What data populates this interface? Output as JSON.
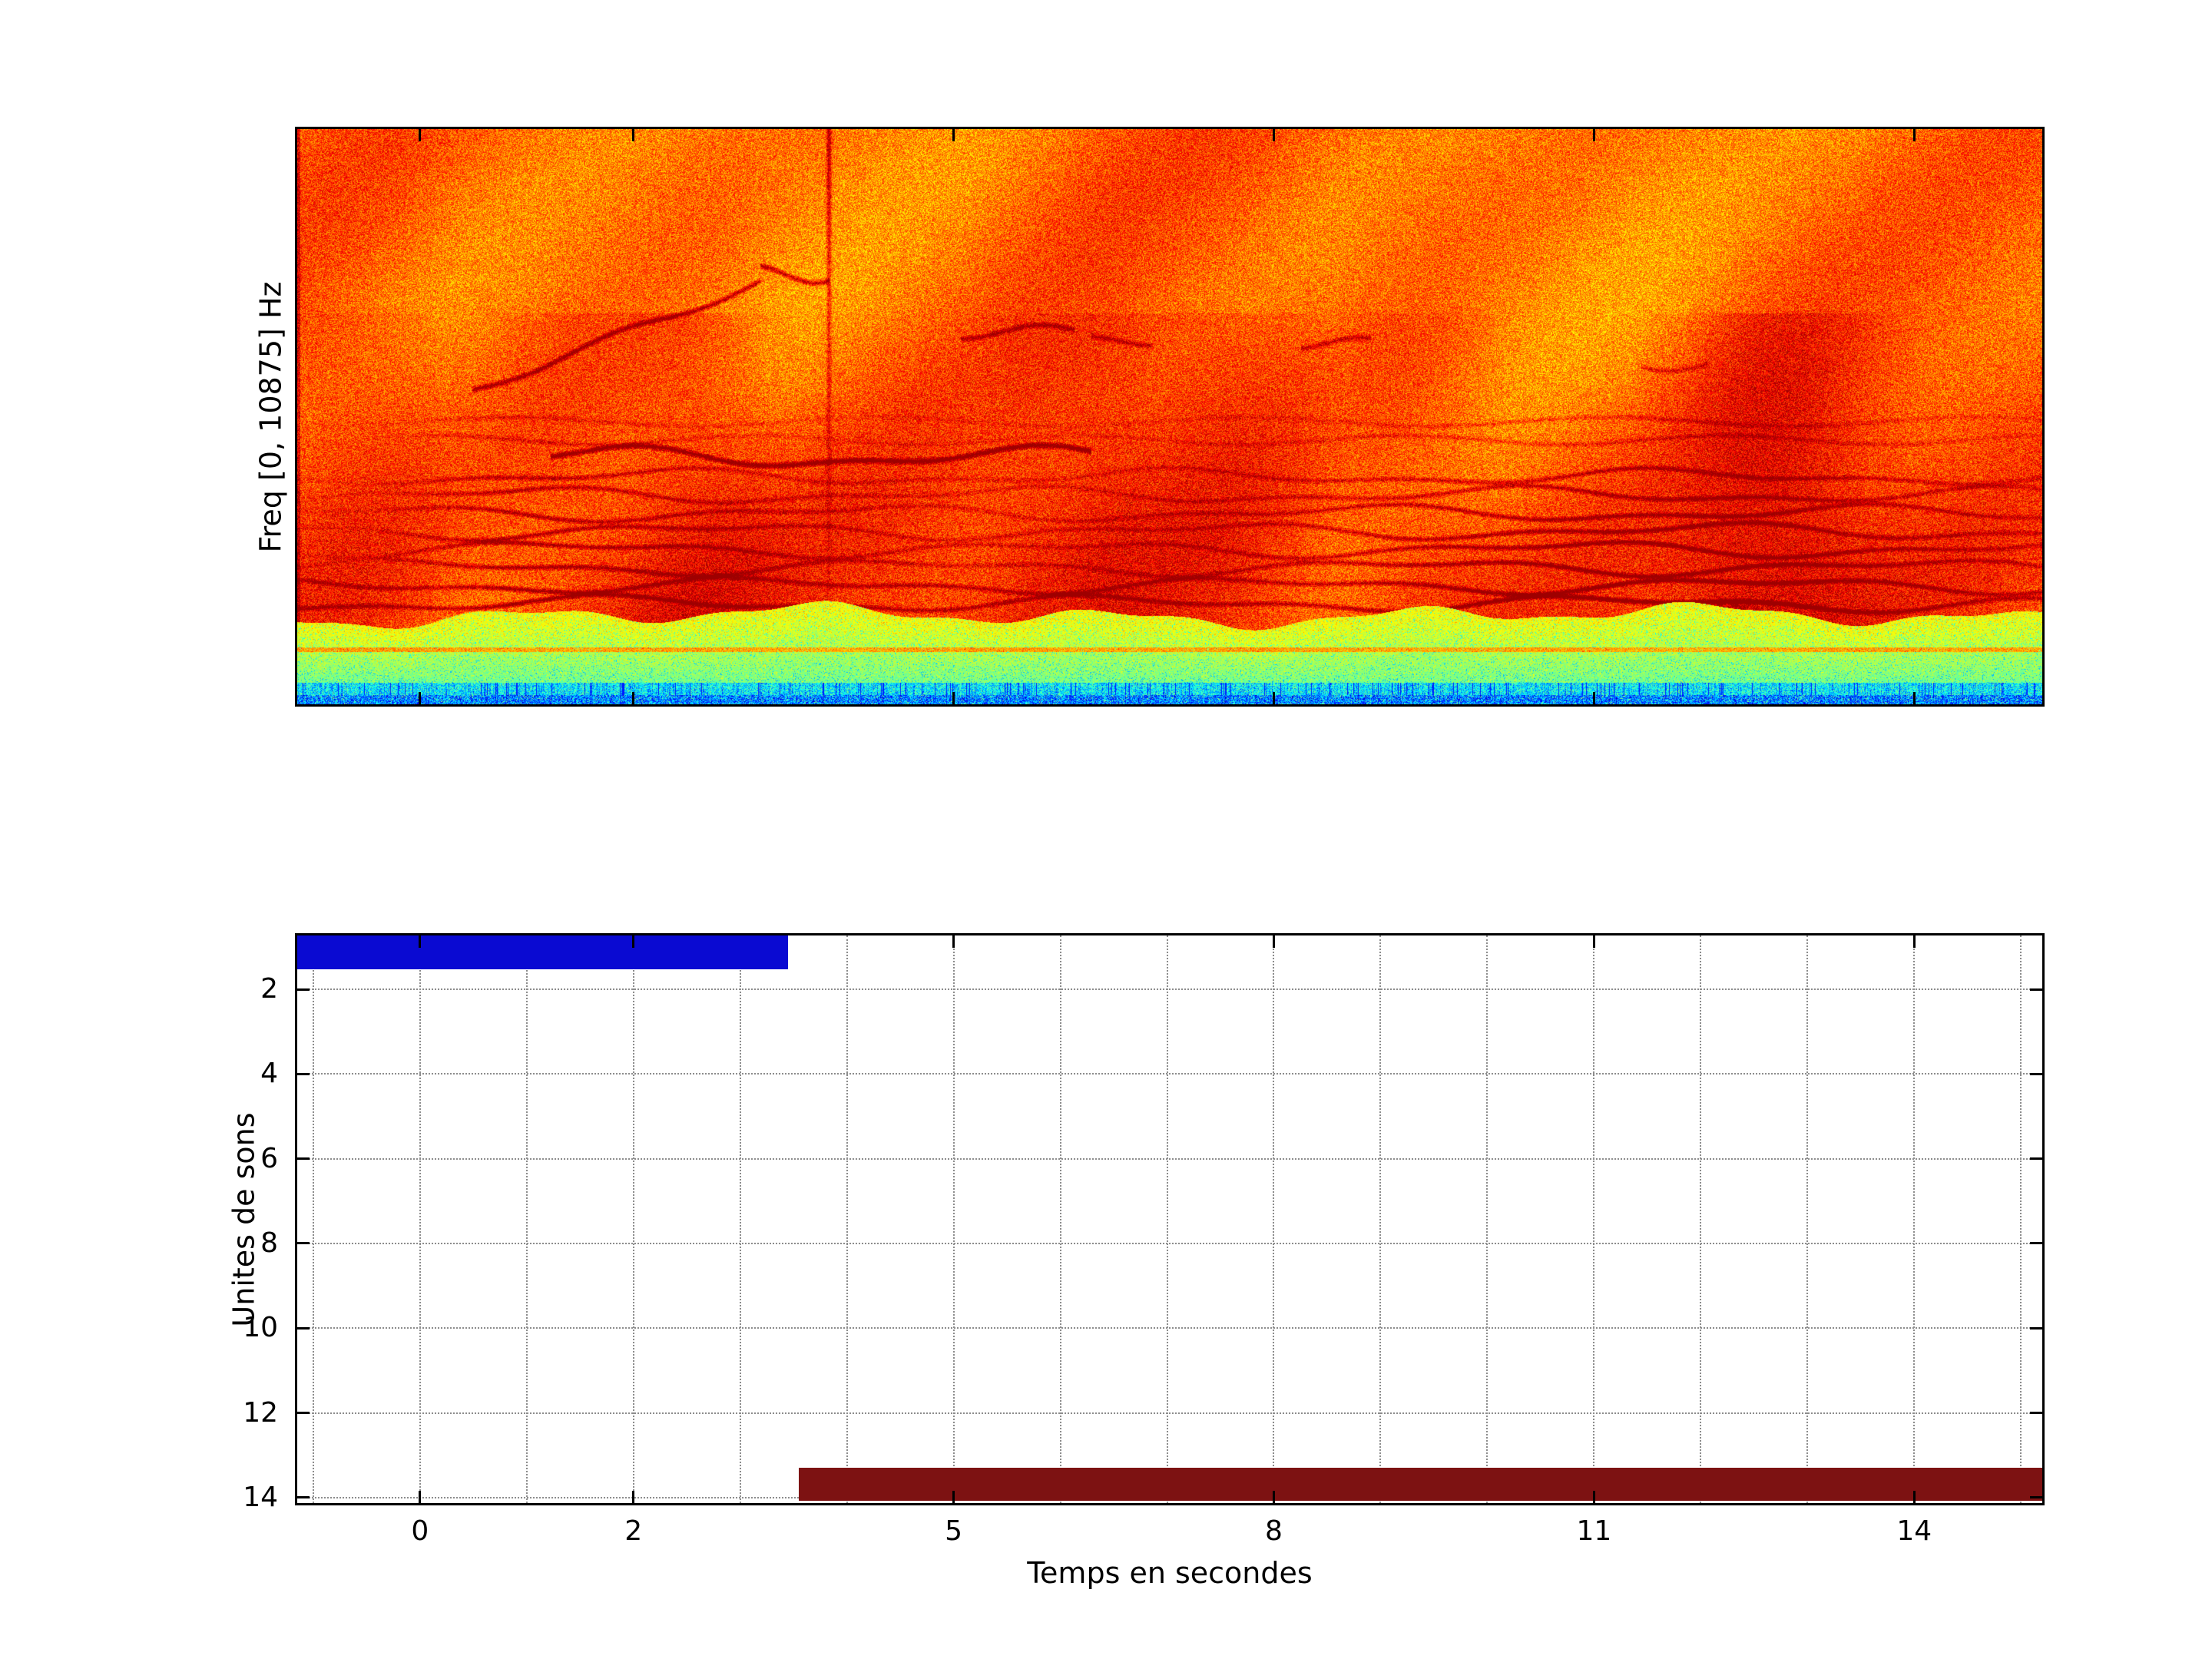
{
  "figure": {
    "background": "#ffffff"
  },
  "spectrogram": {
    "ylabel": "Freq [0, 10875] Hz"
  },
  "bar_plot": {
    "xlabel": "Temps en secondes",
    "ylabel": "Unites de sons"
  },
  "chart_data": [
    {
      "type": "heatmap",
      "subtype": "spectrogram",
      "title": "",
      "ylabel": "Freq [0, 10875] Hz",
      "freq_range_hz": [
        0,
        10875
      ],
      "time_range_s": [
        -1.15,
        15.2
      ],
      "xticks": [
        0,
        2,
        5,
        8,
        11,
        14
      ],
      "colormap": "jet",
      "features": [
        "broadband orange/red noise energy across most of the band",
        "stack of about 9 dark-red wavy harmonic bands in the lower third",
        "rising whistle contour between about 0 s and 2.5 s in the upper band",
        "short flat whistle contours near 4-5 s, 6 s, 8.5 s and 11.5 s",
        "vertical broadband click near 3.8 s",
        "dense dark patch near 11.7 s just above the low band",
        "bright yellow-green low-frequency band along the bottom",
        "cyan and blue noise floor at the lowest frequencies"
      ]
    },
    {
      "type": "bar",
      "orientation": "horizontal",
      "title": "",
      "xlabel": "Temps en secondes",
      "ylabel": "Unites de sons",
      "xlim": [
        -1.15,
        15.2
      ],
      "ylim": [
        0.73,
        14.13
      ],
      "y_axis_reversed": true,
      "xticks": [
        0,
        2,
        5,
        8,
        11,
        14
      ],
      "yticks": [
        2,
        4,
        6,
        8,
        10,
        12,
        14
      ],
      "grid": {
        "style": "dotted",
        "color": "#8c8c8c",
        "x_step_s": 1
      },
      "bars": [
        {
          "name": "sound-unit-1",
          "row": 1,
          "t_start": -1.15,
          "t_end": 3.45,
          "y_top": 0.73,
          "y_bottom": 1.52,
          "color": "#0a0ad2"
        },
        {
          "name": "sound-unit-14",
          "row": 14,
          "t_start": 3.55,
          "t_end": 15.2,
          "y_top": 13.3,
          "y_bottom": 14.08,
          "color": "#7d1212"
        }
      ]
    }
  ]
}
